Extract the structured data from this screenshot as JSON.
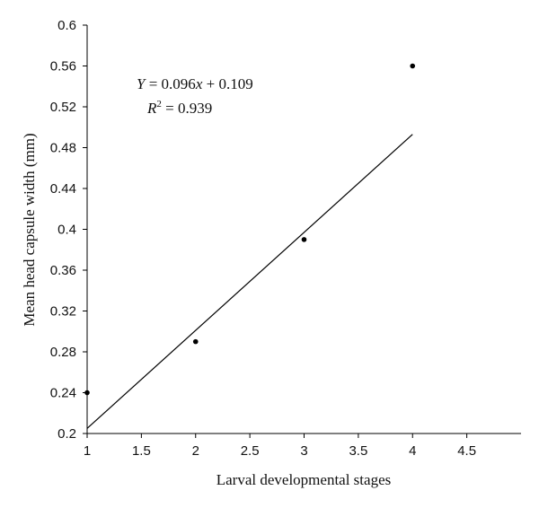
{
  "chart_data": {
    "type": "scatter",
    "xlabel": "Larval developmental stages",
    "ylabel": "Mean head capsule width (mm)",
    "xlim": [
      1,
      5
    ],
    "ylim": [
      0.2,
      0.6
    ],
    "x_ticks": [
      "1",
      "1.5",
      "2",
      "2.5",
      "3",
      "3.5",
      "4",
      "4.5"
    ],
    "y_ticks": [
      "0.2",
      "0.24",
      "0.28",
      "0.32",
      "0.36",
      "0.4",
      "0.44",
      "0.48",
      "0.52",
      "0.56",
      "0.6"
    ],
    "grid": false,
    "series": [
      {
        "x": [
          1,
          2,
          3,
          4
        ],
        "y": [
          0.24,
          0.29,
          0.39,
          0.56
        ]
      }
    ],
    "trendline": {
      "slope": 0.096,
      "intercept": 0.109,
      "x_range": [
        1,
        4
      ]
    },
    "annotation": {
      "y_var": "Y",
      "eq_rest": " = 0.096",
      "x_var": "x",
      "eq_tail": " + 0.109",
      "r_var": "R",
      "r_exp": "2",
      "r_rest": " = 0.939"
    }
  }
}
